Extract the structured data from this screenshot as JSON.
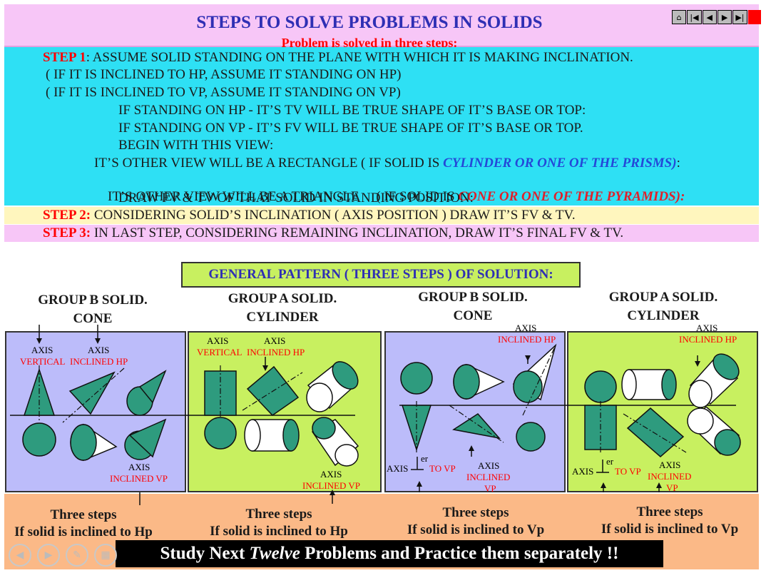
{
  "header": {
    "title": "STEPS TO SOLVE PROBLEMS IN SOLIDS",
    "subtitle": "Problem is solved in three steps:"
  },
  "nav": {
    "home": "⌂",
    "first": "|◀",
    "prev": "◀",
    "next": "▶",
    "last": "▶|"
  },
  "step1": {
    "label": "STEP 1",
    "text": ": ASSUME SOLID STANDING ON THE PLANE WITH WHICH IT IS MAKING INCLINATION.",
    "l2": "( IF IT IS INCLINED TO HP, ASSUME IT STANDING ON HP)",
    "l3": "( IF IT IS INCLINED TO VP, ASSUME IT STANDING ON VP)",
    "l4": "IF STANDING ON HP - IT’S TV WILL BE TRUE SHAPE OF IT’S BASE OR TOP:",
    "l5": "IF STANDING ON VP - IT’S FV WILL BE TRUE SHAPE OF IT’S BASE OR TOP.",
    "l6": "BEGIN WITH THIS VIEW:",
    "l7a": "IT’S OTHER VIEW WILL BE A RECTANGLE ( IF SOLID IS ",
    "l7b": "CYLINDER OR ONE OF THE PRISMS)",
    "l7c": ":",
    "l8a": "IT’S OTHER VIEW WILL BE A TRIANGLE     ( IF SOLID IS ",
    "l8b": "CONE OR ONE OF THE PYRAMIDS):",
    "l9": "DRAW FV & TV OF THAT SOLID IN STANDING POSITION:"
  },
  "step2": {
    "label": "STEP 2:",
    "text": " CONSIDERING SOLID’S INCLINATION ( AXIS POSITION ) DRAW IT’S FV & TV."
  },
  "step3": {
    "label": "STEP 3:",
    "text": " IN LAST STEP, CONSIDERING REMAINING INCLINATION, DRAW IT’S FINAL FV & TV."
  },
  "general": "GENERAL PATTERN ( THREE STEPS ) OF SOLUTION:",
  "groups": [
    {
      "l1": "GROUP B SOLID.",
      "l2": "CONE"
    },
    {
      "l1": "GROUP A SOLID.",
      "l2": "CYLINDER"
    },
    {
      "l1": "GROUP B SOLID.",
      "l2": "CONE"
    },
    {
      "l1": "GROUP A SOLID.",
      "l2": "CYLINDER"
    }
  ],
  "labels": {
    "axis": "AXIS",
    "vertical": "VERTICAL",
    "inclined_hp": "INCLINED HP",
    "inclined_vp": "INCLINED VP",
    "inclined": "INCLINED",
    "vp": "VP",
    "er": "er",
    "to_vp": "TO VP"
  },
  "three_steps": [
    {
      "l1": "Three steps",
      "l2": "If solid is inclined to Hp"
    },
    {
      "l1": "Three steps",
      "l2": "If solid is inclined to Hp"
    },
    {
      "l1": "Three steps",
      "l2": "If solid is inclined to Vp"
    },
    {
      "l1": "Three steps",
      "l2": "If solid is inclined to Vp"
    }
  ],
  "study": {
    "a": "Study Next ",
    "b": "Twelve",
    "c": " Problems and Practice them separately !!"
  },
  "controls": {
    "back": "◀",
    "fwd": "▶",
    "pen": "✎",
    "slides": "▦",
    "more": "⋯"
  },
  "colors": {
    "solid": "#2e9b7e",
    "red": "#ff0000",
    "blue": "#2f2fb4"
  }
}
